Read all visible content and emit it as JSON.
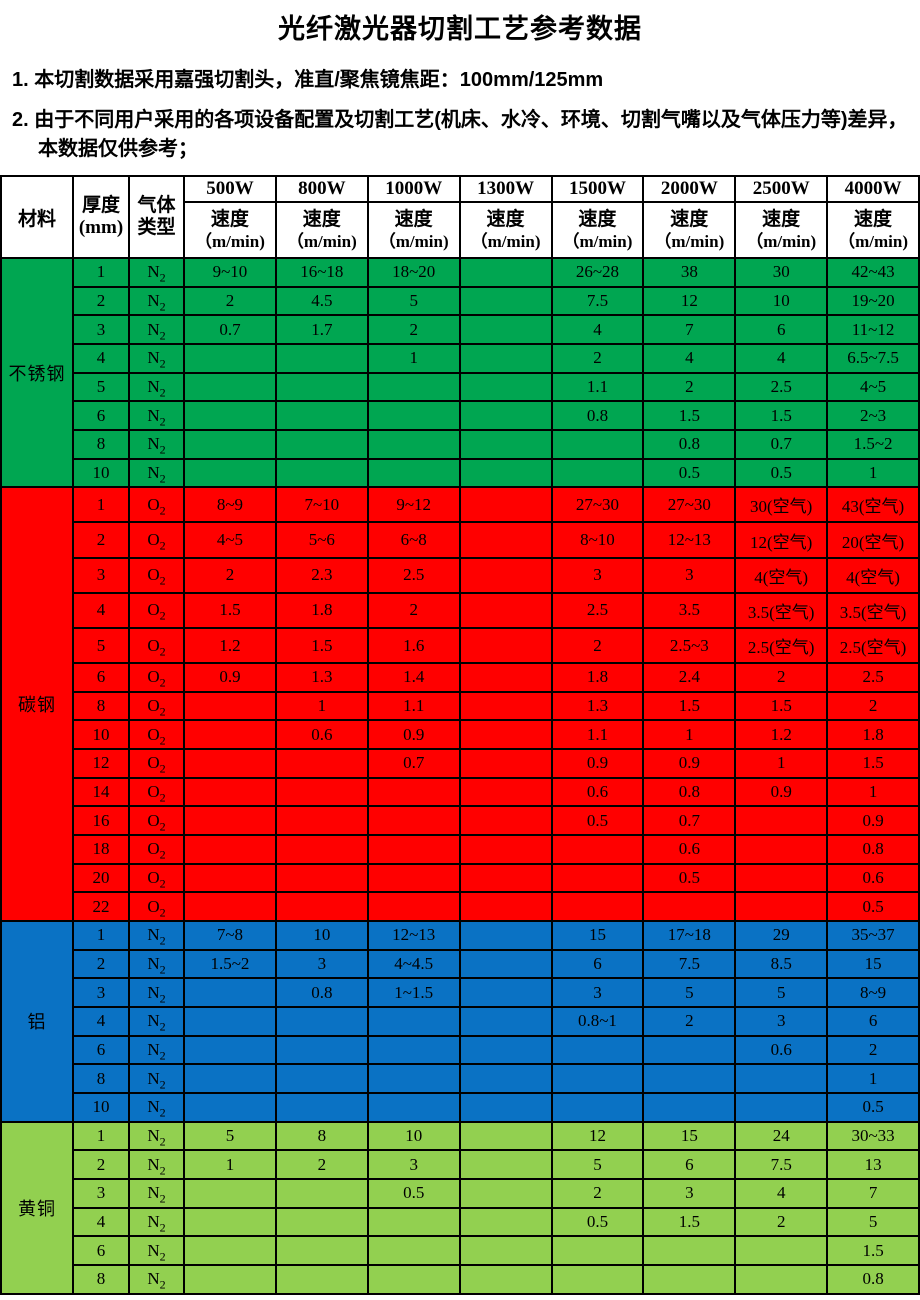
{
  "title": "光纤激光器切割工艺参考数据",
  "notes": [
    "1. 本切割数据采用嘉强切割头，准直/聚焦镜焦距：100mm/125mm",
    "2. 由于不同用户采用的各项设备配置及切割工艺(机床、水冷、环境、切割气嘴以及气体压力等)差异，本数据仅供参考；"
  ],
  "table": {
    "header": {
      "material": "材料",
      "thickness_line1": "厚度",
      "thickness_line2": "(mm)",
      "gas_line1": "气体",
      "gas_line2": "类型",
      "powers": [
        "500W",
        "800W",
        "1000W",
        "1300W",
        "1500W",
        "2000W",
        "2500W",
        "4000W"
      ],
      "speed_label": "速度",
      "speed_unit": "（m/min)"
    },
    "sections": [
      {
        "material": "不锈钢",
        "color": "#00A651",
        "rows": [
          {
            "thickness": "1",
            "gas": "N2",
            "speeds": [
              "9~10",
              "16~18",
              "18~20",
              "",
              "26~28",
              "38",
              "30",
              "42~43"
            ]
          },
          {
            "thickness": "2",
            "gas": "N2",
            "speeds": [
              "2",
              "4.5",
              "5",
              "",
              "7.5",
              "12",
              "10",
              "19~20"
            ]
          },
          {
            "thickness": "3",
            "gas": "N2",
            "speeds": [
              "0.7",
              "1.7",
              "2",
              "",
              "4",
              "7",
              "6",
              "11~12"
            ]
          },
          {
            "thickness": "4",
            "gas": "N2",
            "speeds": [
              "",
              "",
              "1",
              "",
              "2",
              "4",
              "4",
              "6.5~7.5"
            ]
          },
          {
            "thickness": "5",
            "gas": "N2",
            "speeds": [
              "",
              "",
              "",
              "",
              "1.1",
              "2",
              "2.5",
              "4~5"
            ]
          },
          {
            "thickness": "6",
            "gas": "N2",
            "speeds": [
              "",
              "",
              "",
              "",
              "0.8",
              "1.5",
              "1.5",
              "2~3"
            ]
          },
          {
            "thickness": "8",
            "gas": "N2",
            "speeds": [
              "",
              "",
              "",
              "",
              "",
              "0.8",
              "0.7",
              "1.5~2"
            ]
          },
          {
            "thickness": "10",
            "gas": "N2",
            "speeds": [
              "",
              "",
              "",
              "",
              "",
              "0.5",
              "0.5",
              "1"
            ]
          }
        ]
      },
      {
        "material": "碳钢",
        "color": "#FF0000",
        "rows": [
          {
            "thickness": "1",
            "gas": "O2",
            "speeds": [
              "8~9",
              "7~10",
              "9~12",
              "",
              "27~30",
              "27~30",
              "30(空气)",
              "43(空气)"
            ]
          },
          {
            "thickness": "2",
            "gas": "O2",
            "speeds": [
              "4~5",
              "5~6",
              "6~8",
              "",
              "8~10",
              "12~13",
              "12(空气)",
              "20(空气)"
            ]
          },
          {
            "thickness": "3",
            "gas": "O2",
            "speeds": [
              "2",
              "2.3",
              "2.5",
              "",
              "3",
              "3",
              "4(空气)",
              "4(空气)"
            ]
          },
          {
            "thickness": "4",
            "gas": "O2",
            "speeds": [
              "1.5",
              "1.8",
              "2",
              "",
              "2.5",
              "3.5",
              "3.5(空气)",
              "3.5(空气)"
            ]
          },
          {
            "thickness": "5",
            "gas": "O2",
            "speeds": [
              "1.2",
              "1.5",
              "1.6",
              "",
              "2",
              "2.5~3",
              "2.5(空气)",
              "2.5(空气)"
            ]
          },
          {
            "thickness": "6",
            "gas": "O2",
            "speeds": [
              "0.9",
              "1.3",
              "1.4",
              "",
              "1.8",
              "2.4",
              "2",
              "2.5"
            ]
          },
          {
            "thickness": "8",
            "gas": "O2",
            "speeds": [
              "",
              "1",
              "1.1",
              "",
              "1.3",
              "1.5",
              "1.5",
              "2"
            ]
          },
          {
            "thickness": "10",
            "gas": "O2",
            "speeds": [
              "",
              "0.6",
              "0.9",
              "",
              "1.1",
              "1",
              "1.2",
              "1.8"
            ]
          },
          {
            "thickness": "12",
            "gas": "O2",
            "speeds": [
              "",
              "",
              "0.7",
              "",
              "0.9",
              "0.9",
              "1",
              "1.5"
            ]
          },
          {
            "thickness": "14",
            "gas": "O2",
            "speeds": [
              "",
              "",
              "",
              "",
              "0.6",
              "0.8",
              "0.9",
              "1"
            ]
          },
          {
            "thickness": "16",
            "gas": "O2",
            "speeds": [
              "",
              "",
              "",
              "",
              "0.5",
              "0.7",
              "",
              "0.9"
            ]
          },
          {
            "thickness": "18",
            "gas": "O2",
            "speeds": [
              "",
              "",
              "",
              "",
              "",
              "0.6",
              "",
              "0.8"
            ]
          },
          {
            "thickness": "20",
            "gas": "O2",
            "speeds": [
              "",
              "",
              "",
              "",
              "",
              "0.5",
              "",
              "0.6"
            ]
          },
          {
            "thickness": "22",
            "gas": "O2",
            "speeds": [
              "",
              "",
              "",
              "",
              "",
              "",
              "",
              "0.5"
            ]
          }
        ]
      },
      {
        "material": "铝",
        "color": "#0A72C4",
        "rows": [
          {
            "thickness": "1",
            "gas": "N2",
            "speeds": [
              "7~8",
              "10",
              "12~13",
              "",
              "15",
              "17~18",
              "29",
              "35~37"
            ]
          },
          {
            "thickness": "2",
            "gas": "N2",
            "speeds": [
              "1.5~2",
              "3",
              "4~4.5",
              "",
              "6",
              "7.5",
              "8.5",
              "15"
            ]
          },
          {
            "thickness": "3",
            "gas": "N2",
            "speeds": [
              "",
              "0.8",
              "1~1.5",
              "",
              "3",
              "5",
              "5",
              "8~9"
            ]
          },
          {
            "thickness": "4",
            "gas": "N2",
            "speeds": [
              "",
              "",
              "",
              "",
              "0.8~1",
              "2",
              "3",
              "6"
            ]
          },
          {
            "thickness": "6",
            "gas": "N2",
            "speeds": [
              "",
              "",
              "",
              "",
              "",
              "",
              "0.6",
              "2"
            ]
          },
          {
            "thickness": "8",
            "gas": "N2",
            "speeds": [
              "",
              "",
              "",
              "",
              "",
              "",
              "",
              "1"
            ]
          },
          {
            "thickness": "10",
            "gas": "N2",
            "speeds": [
              "",
              "",
              "",
              "",
              "",
              "",
              "",
              "0.5"
            ]
          }
        ]
      },
      {
        "material": "黄铜",
        "color": "#92D050",
        "rows": [
          {
            "thickness": "1",
            "gas": "N2",
            "speeds": [
              "5",
              "8",
              "10",
              "",
              "12",
              "15",
              "24",
              "30~33"
            ]
          },
          {
            "thickness": "2",
            "gas": "N2",
            "speeds": [
              "1",
              "2",
              "3",
              "",
              "5",
              "6",
              "7.5",
              "13"
            ]
          },
          {
            "thickness": "3",
            "gas": "N2",
            "speeds": [
              "",
              "",
              "0.5",
              "",
              "2",
              "3",
              "4",
              "7"
            ]
          },
          {
            "thickness": "4",
            "gas": "N2",
            "speeds": [
              "",
              "",
              "",
              "",
              "0.5",
              "1.5",
              "2",
              "5"
            ]
          },
          {
            "thickness": "6",
            "gas": "N2",
            "speeds": [
              "",
              "",
              "",
              "",
              "",
              "",
              "",
              "1.5"
            ]
          },
          {
            "thickness": "8",
            "gas": "N2",
            "speeds": [
              "",
              "",
              "",
              "",
              "",
              "",
              "",
              "0.8"
            ]
          }
        ]
      }
    ]
  }
}
